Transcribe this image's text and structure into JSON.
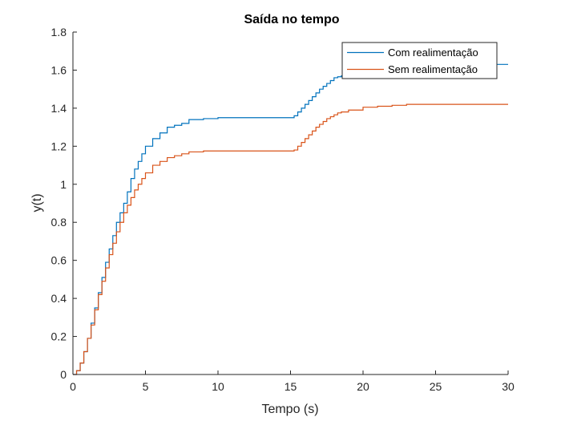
{
  "chart_data": {
    "type": "line",
    "title": "Saída no tempo",
    "xlabel": "Tempo (s)",
    "ylabel": "y(t)",
    "xlim": [
      0,
      30
    ],
    "ylim": [
      0,
      1.8
    ],
    "xticks": [
      0,
      5,
      10,
      15,
      20,
      25,
      30
    ],
    "xtick_labels": [
      "0",
      "5",
      "10",
      "15",
      "20",
      "25",
      "30"
    ],
    "yticks": [
      0,
      0.2,
      0.4,
      0.6,
      0.8,
      1.0,
      1.2,
      1.4,
      1.6,
      1.8
    ],
    "ytick_labels": [
      "0",
      "0.2",
      "0.4",
      "0.6",
      "0.8",
      "1",
      "1.2",
      "1.4",
      "1.6",
      "1.8"
    ],
    "grid": false,
    "legend_position": "top-right",
    "step_plot": true,
    "series": [
      {
        "name": "Com realimentação",
        "color": "#0072BD",
        "x": [
          0,
          0.25,
          0.5,
          0.75,
          1,
          1.25,
          1.5,
          1.75,
          2,
          2.25,
          2.5,
          2.75,
          3,
          3.25,
          3.5,
          3.75,
          4,
          4.25,
          4.5,
          4.75,
          5,
          5.5,
          6,
          6.5,
          7,
          7.5,
          8,
          9,
          10,
          11,
          12,
          13,
          14,
          15,
          15.25,
          15.5,
          15.75,
          16,
          16.25,
          16.5,
          16.75,
          17,
          17.25,
          17.5,
          17.75,
          18,
          18.25,
          18.5,
          19,
          20,
          21,
          22,
          23,
          24,
          25,
          26,
          27,
          28,
          29,
          30
        ],
        "y": [
          0,
          0.02,
          0.06,
          0.12,
          0.19,
          0.27,
          0.35,
          0.43,
          0.51,
          0.59,
          0.66,
          0.73,
          0.8,
          0.85,
          0.9,
          0.96,
          1.03,
          1.08,
          1.12,
          1.16,
          1.2,
          1.24,
          1.27,
          1.3,
          1.31,
          1.32,
          1.34,
          1.345,
          1.35,
          1.35,
          1.35,
          1.35,
          1.35,
          1.35,
          1.36,
          1.38,
          1.4,
          1.42,
          1.44,
          1.46,
          1.48,
          1.5,
          1.515,
          1.53,
          1.545,
          1.56,
          1.565,
          1.57,
          1.59,
          1.61,
          1.62,
          1.625,
          1.63,
          1.63,
          1.63,
          1.63,
          1.63,
          1.63,
          1.63,
          1.63
        ]
      },
      {
        "name": "Sem realimentação",
        "color": "#D95319",
        "x": [
          0,
          0.25,
          0.5,
          0.75,
          1,
          1.25,
          1.5,
          1.75,
          2,
          2.25,
          2.5,
          2.75,
          3,
          3.25,
          3.5,
          3.75,
          4,
          4.25,
          4.5,
          4.75,
          5,
          5.5,
          6,
          6.5,
          7,
          7.5,
          8,
          9,
          10,
          11,
          12,
          13,
          14,
          15,
          15.25,
          15.5,
          15.75,
          16,
          16.25,
          16.5,
          16.75,
          17,
          17.25,
          17.5,
          17.75,
          18,
          18.25,
          18.5,
          19,
          20,
          21,
          22,
          23,
          24,
          25,
          26,
          27,
          28,
          29,
          30
        ],
        "y": [
          0,
          0.02,
          0.06,
          0.12,
          0.19,
          0.26,
          0.34,
          0.42,
          0.49,
          0.56,
          0.63,
          0.69,
          0.75,
          0.8,
          0.85,
          0.89,
          0.93,
          0.97,
          1.0,
          1.03,
          1.06,
          1.1,
          1.12,
          1.14,
          1.15,
          1.16,
          1.17,
          1.175,
          1.175,
          1.175,
          1.175,
          1.175,
          1.175,
          1.175,
          1.18,
          1.2,
          1.22,
          1.24,
          1.26,
          1.28,
          1.3,
          1.315,
          1.33,
          1.345,
          1.355,
          1.365,
          1.375,
          1.38,
          1.39,
          1.405,
          1.41,
          1.415,
          1.42,
          1.42,
          1.42,
          1.42,
          1.42,
          1.42,
          1.42,
          1.42
        ]
      }
    ]
  }
}
